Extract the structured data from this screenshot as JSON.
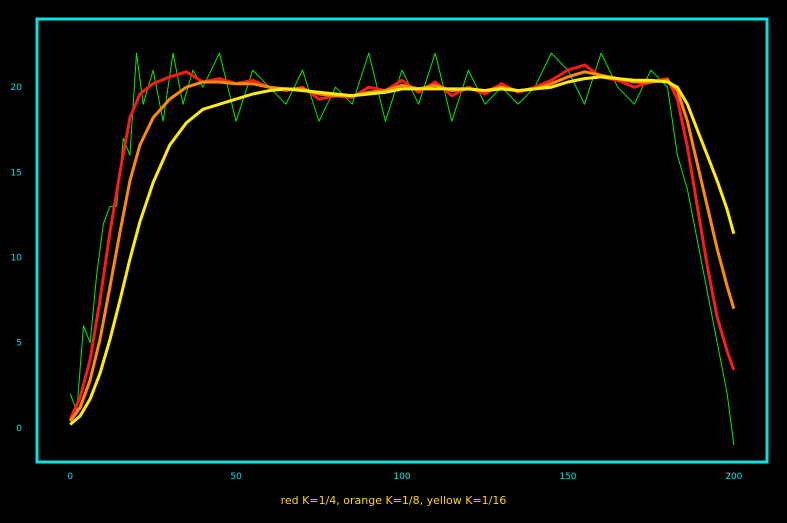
{
  "chart_data": {
    "type": "line",
    "caption": "red K=1/4, orange K=1/8, yellow K=1/16",
    "xlim": [
      -10,
      210
    ],
    "ylim": [
      -2,
      24
    ],
    "x_ticks": [
      0,
      50,
      100,
      150,
      200
    ],
    "y_ticks": [
      0,
      5,
      10,
      15,
      20
    ],
    "grid": false,
    "legend": "none",
    "frame_color": "#00e5e5",
    "tick_color": "#00e5e5",
    "background": "#000000",
    "caption_color": "#ffd21a",
    "series": [
      {
        "color": "#00ee00",
        "x": [
          0,
          2,
          4,
          6,
          8,
          10,
          12,
          14,
          16,
          18,
          20,
          22,
          25,
          28,
          31,
          34,
          37,
          40,
          45,
          50,
          55,
          60,
          65,
          70,
          75,
          80,
          85,
          90,
          95,
          100,
          105,
          110,
          115,
          120,
          125,
          130,
          135,
          140,
          145,
          150,
          155,
          160,
          165,
          170,
          175,
          180,
          183,
          186,
          189,
          192,
          195,
          198,
          200
        ],
        "y": [
          2,
          1,
          6,
          5,
          9,
          12,
          13,
          13,
          17,
          16,
          22,
          19,
          21,
          18,
          22,
          19,
          21,
          20,
          22,
          18,
          21,
          20,
          19,
          21,
          18,
          20,
          19,
          22,
          18,
          21,
          19,
          22,
          18,
          21,
          19,
          20,
          19,
          20,
          22,
          21,
          19,
          22,
          20,
          19,
          21,
          20,
          16,
          14,
          11,
          8,
          5,
          2,
          -1
        ]
      },
      {
        "color": "#ff1a1a",
        "x": [
          0,
          3,
          6,
          9,
          12,
          15,
          18,
          21,
          25,
          30,
          35,
          40,
          45,
          50,
          55,
          60,
          65,
          70,
          75,
          80,
          85,
          90,
          95,
          100,
          105,
          110,
          115,
          120,
          125,
          130,
          135,
          140,
          145,
          150,
          155,
          160,
          165,
          170,
          175,
          180,
          183,
          186,
          189,
          192,
          195,
          198,
          200
        ],
        "y": [
          0.5,
          1.8,
          4,
          7.5,
          11.5,
          15,
          18.2,
          19.6,
          20.2,
          20.6,
          20.9,
          20.3,
          20.5,
          20.2,
          20.4,
          20.0,
          19.8,
          20.0,
          19.3,
          19.5,
          19.4,
          20.0,
          19.8,
          20.4,
          19.7,
          20.3,
          19.5,
          20.0,
          19.6,
          20.2,
          19.7,
          20.0,
          20.4,
          21.0,
          21.3,
          20.6,
          20.4,
          20.0,
          20.3,
          20.5,
          19.3,
          16.5,
          13.0,
          9.5,
          6.5,
          4.5,
          3.4
        ]
      },
      {
        "color": "#ff8c00",
        "x": [
          0,
          3,
          6,
          9,
          12,
          15,
          18,
          21,
          25,
          30,
          35,
          40,
          45,
          50,
          55,
          60,
          65,
          70,
          75,
          80,
          85,
          90,
          95,
          100,
          105,
          110,
          115,
          120,
          125,
          130,
          135,
          140,
          145,
          150,
          155,
          160,
          165,
          170,
          175,
          180,
          183,
          186,
          189,
          192,
          195,
          198,
          200
        ],
        "y": [
          0.4,
          1.2,
          2.8,
          5.2,
          8.3,
          11.5,
          14.5,
          16.6,
          18.2,
          19.3,
          20.0,
          20.3,
          20.3,
          20.2,
          20.2,
          20.0,
          19.9,
          19.9,
          19.6,
          19.5,
          19.5,
          19.7,
          19.8,
          20.1,
          19.9,
          20.1,
          19.8,
          19.9,
          19.8,
          20.0,
          19.8,
          19.9,
          20.2,
          20.6,
          20.9,
          20.7,
          20.5,
          20.3,
          20.3,
          20.4,
          19.8,
          18.0,
          15.5,
          13.0,
          10.5,
          8.3,
          7.0
        ]
      },
      {
        "color": "#ffee00",
        "x": [
          0,
          3,
          6,
          9,
          12,
          15,
          18,
          21,
          25,
          30,
          35,
          40,
          45,
          50,
          55,
          60,
          65,
          70,
          75,
          80,
          85,
          90,
          95,
          100,
          105,
          110,
          115,
          120,
          125,
          130,
          135,
          140,
          145,
          150,
          155,
          160,
          165,
          170,
          175,
          180,
          183,
          186,
          189,
          192,
          195,
          198,
          200
        ],
        "y": [
          0.2,
          0.7,
          1.7,
          3.2,
          5.2,
          7.5,
          9.9,
          12.1,
          14.4,
          16.6,
          17.9,
          18.7,
          19.0,
          19.3,
          19.6,
          19.8,
          19.9,
          19.8,
          19.7,
          19.6,
          19.5,
          19.6,
          19.7,
          19.9,
          19.9,
          19.9,
          19.9,
          19.9,
          19.8,
          19.9,
          19.8,
          19.9,
          20.0,
          20.3,
          20.5,
          20.6,
          20.5,
          20.4,
          20.4,
          20.3,
          20.0,
          19.0,
          17.5,
          16.0,
          14.5,
          12.8,
          11.4
        ]
      }
    ]
  }
}
